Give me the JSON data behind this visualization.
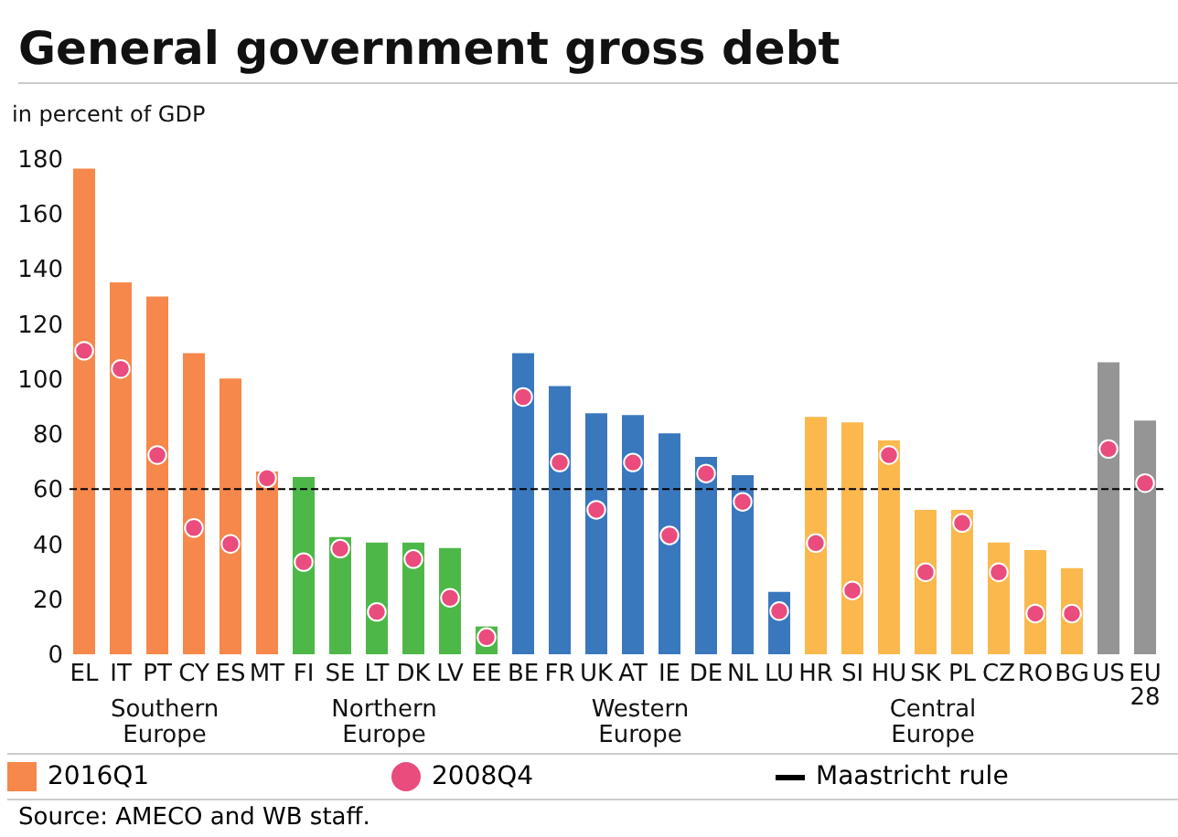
{
  "chart_data": {
    "type": "bar",
    "title": "General government gross debt",
    "ylabel": "in percent of GDP",
    "legend": "bottom",
    "marker": "circle",
    "annotations": [
      "Source: AMECO and WB staff.",
      "Southern Europe",
      "Northern Europe",
      "Western Europe",
      "Central Europe"
    ],
    "categories": [
      "EL",
      "IT",
      "PT",
      "CY",
      "ES",
      "MT",
      "FI",
      "SE",
      "LT",
      "DK",
      "LV",
      "EE",
      "BE",
      "FR",
      "UK",
      "AT",
      "IE",
      "DE",
      "NL",
      "LU",
      "HR",
      "SI",
      "HU",
      "SK",
      "PL",
      "CZ",
      "RO",
      "BG",
      "US",
      "EU 28"
    ],
    "ylim": [
      0,
      180
    ],
    "yticks": [
      0,
      20,
      40,
      60,
      80,
      100,
      120,
      140,
      160,
      180
    ],
    "ref_lines": [
      {
        "axis": "y",
        "value": 60,
        "label": "Maastricht rule",
        "line_style": "dashed",
        "color": "#000000"
      }
    ],
    "series": [
      {
        "name": "2016Q1",
        "values": [
          176.5,
          135.2,
          130,
          109.4,
          100.2,
          66.4,
          64.4,
          42.6,
          40.6,
          40.6,
          38.6,
          10.1,
          109.4,
          97.5,
          87.6,
          86.9,
          80.3,
          71.7,
          65.1,
          22.7,
          86.3,
          84.3,
          77.7,
          52.5,
          52.5,
          40.6,
          37.9,
          31.3,
          106.1,
          84.9
        ],
        "colors": [
          "#f5884a",
          "#f5884a",
          "#f5884a",
          "#f5884a",
          "#f5884a",
          "#f5884a",
          "#4db848",
          "#4db848",
          "#4db848",
          "#4db848",
          "#4db848",
          "#4db848",
          "#3a78be",
          "#3a78be",
          "#3a78be",
          "#3a78be",
          "#3a78be",
          "#3a78be",
          "#3a78be",
          "#3a78be",
          "#fbb84d",
          "#fbb84d",
          "#fbb84d",
          "#fbb84d",
          "#fbb84d",
          "#fbb84d",
          "#fbb84d",
          "#fbb84d",
          "#959595",
          "#959595"
        ]
      },
      {
        "name": "2008Q4",
        "type": "scatter",
        "color": "#ea4c7d",
        "values": [
          110.3,
          103.7,
          72.4,
          45.9,
          40.1,
          64,
          33.5,
          38.4,
          15.4,
          34.6,
          20.5,
          6.2,
          93.5,
          69.7,
          52.5,
          69.7,
          43.2,
          65.7,
          55.4,
          15.7,
          40.4,
          23.2,
          72.4,
          29.8,
          47.7,
          29.8,
          14.8,
          14.8,
          74.6,
          62.2
        ]
      }
    ]
  }
}
